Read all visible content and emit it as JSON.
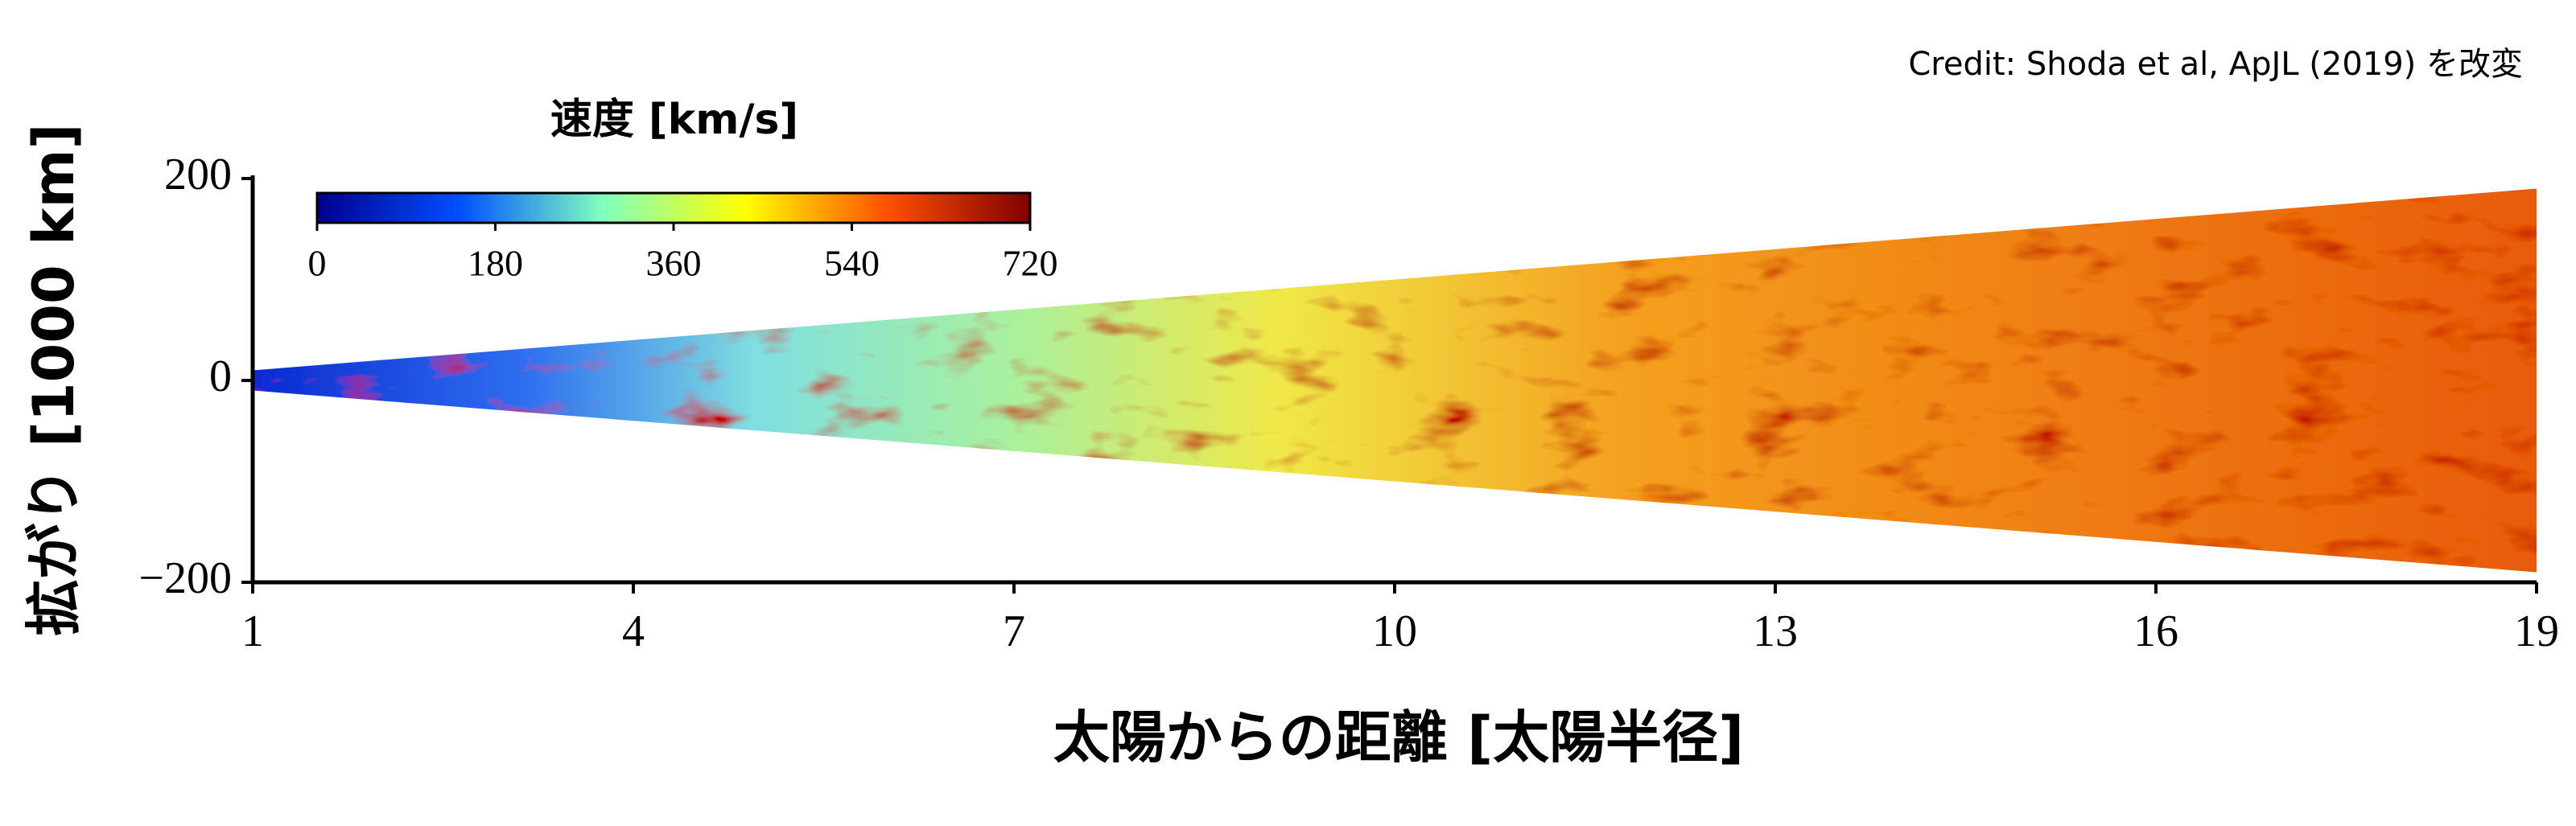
{
  "chart_data": {
    "type": "wedge",
    "credit": "Credit: Shoda et al, ApJL (2019) を改変",
    "xlabel": "太陽からの距離 [太陽半径]",
    "ylabel": "拡がり [1000 km]",
    "x": [
      1,
      19
    ],
    "half_width": [
      10,
      190
    ],
    "xlim": [
      1,
      19
    ],
    "xticks": [
      1,
      4,
      7,
      10,
      13,
      16,
      19
    ],
    "ylim": [
      -200,
      200
    ],
    "yticks": [
      {
        "value": -200,
        "label": "−200"
      },
      0,
      200
    ],
    "colorbar": {
      "label": "速度 [km/s]",
      "lim": [
        0,
        720
      ],
      "ticks": [
        0,
        180,
        360,
        540,
        720
      ],
      "colors": [
        "#00008f",
        "#0050ff",
        "#7fffbf",
        "#ffff00",
        "#ff5000",
        "#800000"
      ]
    }
  }
}
